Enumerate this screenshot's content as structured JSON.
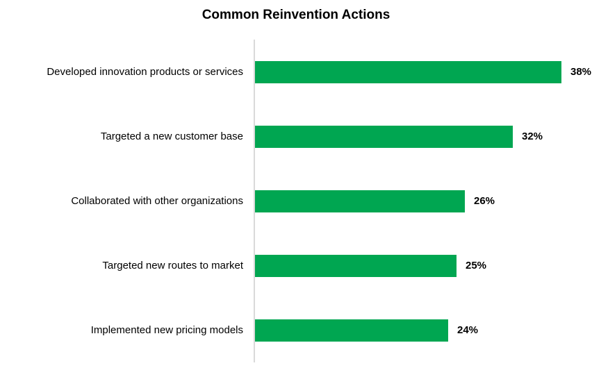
{
  "chart_data": {
    "type": "bar",
    "orientation": "horizontal",
    "title": "Common Reinvention Actions",
    "categories": [
      "Developed innovation products or services",
      "Targeted a new customer base",
      "Collaborated with other organizations",
      "Targeted new routes to market",
      "Implemented new pricing models"
    ],
    "values": [
      38,
      32,
      26,
      25,
      24
    ],
    "value_labels": [
      "38%",
      "32%",
      "26%",
      "25%",
      "24%"
    ],
    "unit": "percent",
    "xlabel": "",
    "ylabel": "",
    "xlim": [
      0,
      40
    ],
    "grid": false,
    "legend": "none",
    "data_labels": "outside-end",
    "bar_color": "#00A651",
    "axis_line_color": "#D9D9D9",
    "text_color": "#000000"
  }
}
